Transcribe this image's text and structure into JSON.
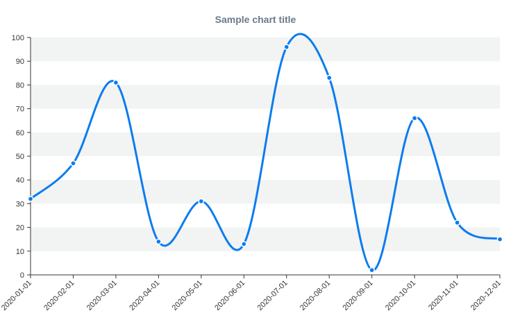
{
  "chart_data": {
    "type": "line",
    "title": "Sample chart title",
    "xlabel": "",
    "ylabel": "",
    "x": [
      "2020-01-01",
      "2020-02-01",
      "2020-03-01",
      "2020-04-01",
      "2020-05-01",
      "2020-06-01",
      "2020-07-01",
      "2020-08-01",
      "2020-09-01",
      "2020-10-01",
      "2020-11-01",
      "2020-12-01"
    ],
    "series": [
      {
        "values": [
          32,
          47,
          81,
          14,
          31,
          13,
          96,
          83,
          2,
          66,
          22,
          15
        ],
        "color": "#0a7cf0"
      }
    ],
    "ylim": [
      0,
      100
    ],
    "yticks": [
      0,
      10,
      20,
      30,
      40,
      50,
      60,
      70,
      80,
      90,
      100
    ],
    "grid": "alternating-horizontal-bands",
    "band_color": "#f2f3f3",
    "legend": "none",
    "smooth": true
  }
}
